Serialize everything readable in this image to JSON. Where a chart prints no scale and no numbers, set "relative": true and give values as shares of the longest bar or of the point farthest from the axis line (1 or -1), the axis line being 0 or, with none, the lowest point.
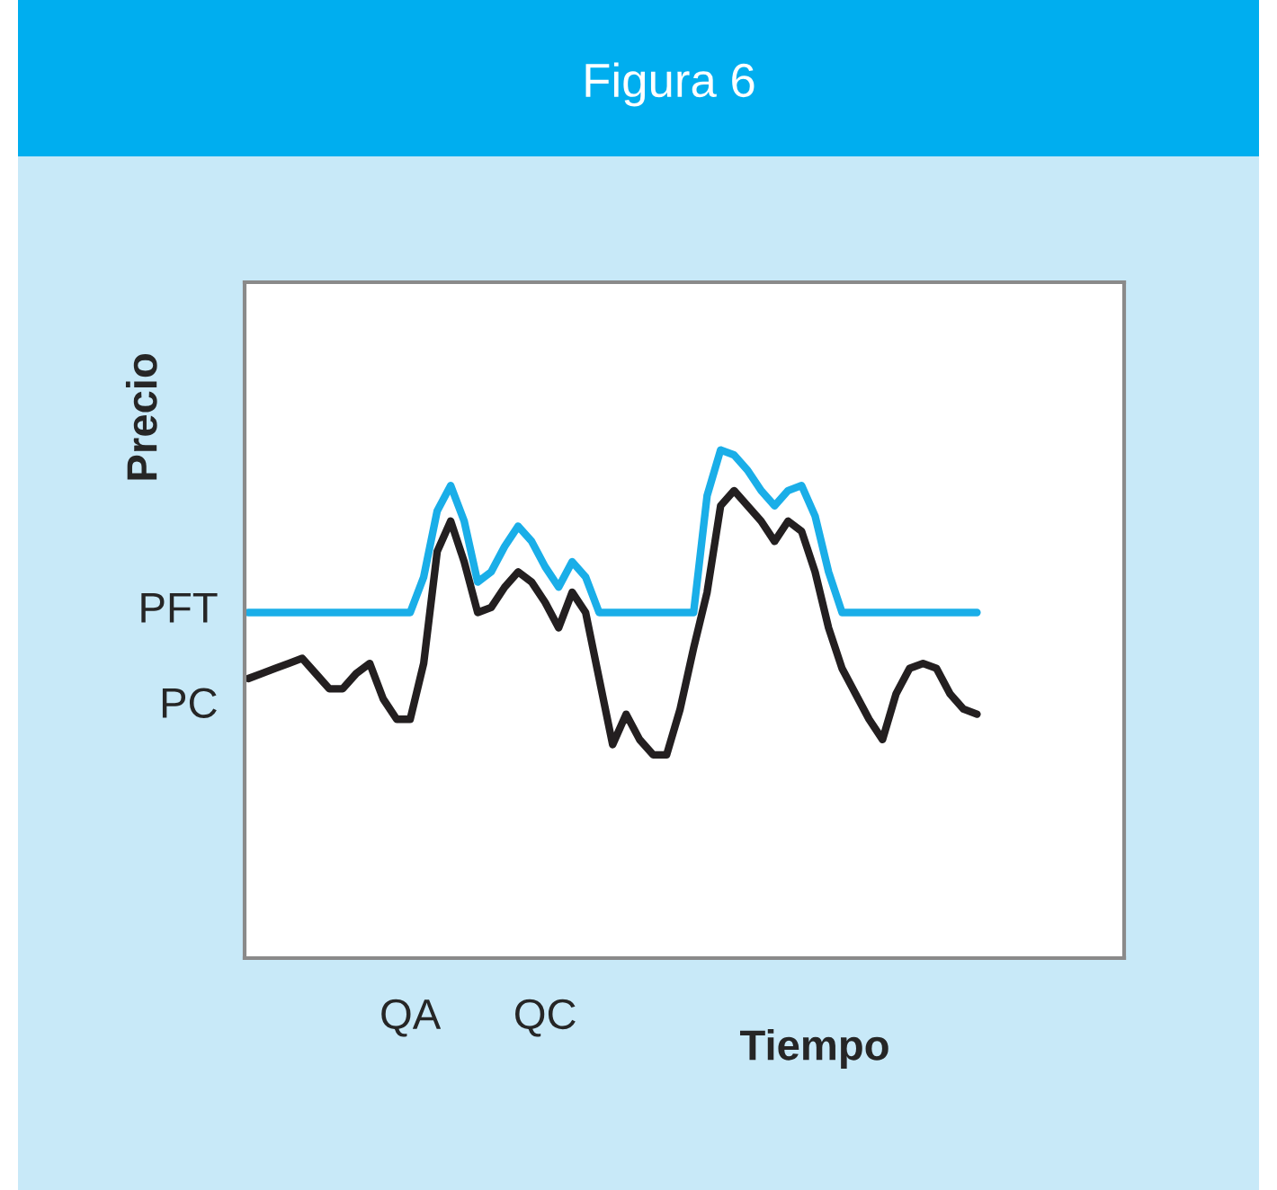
{
  "chart_data": {
    "type": "line",
    "title": "Figura 6",
    "xlabel": "Tiempo",
    "ylabel": "Precio",
    "relative": true,
    "legend": false,
    "grid": false,
    "line_style": "solid",
    "categories": [
      null,
      null,
      null,
      null,
      null,
      null,
      null,
      null,
      null,
      null,
      null,
      null,
      "QA",
      null,
      null,
      null,
      null,
      null,
      null,
      null,
      null,
      null,
      "QC",
      null,
      null,
      null,
      null,
      null,
      null,
      null,
      null,
      null,
      null,
      null,
      null,
      null,
      null,
      null,
      null,
      null,
      null,
      null,
      null,
      null,
      null,
      null,
      null,
      null,
      null,
      null,
      null,
      null,
      null,
      null,
      null,
      null,
      null,
      null,
      null,
      null,
      null,
      null,
      null,
      null,
      null
    ],
    "series": [
      {
        "color": "#1aaee8",
        "values": [
          0.68,
          0.68,
          0.68,
          0.68,
          0.68,
          0.68,
          0.68,
          0.68,
          0.68,
          0.68,
          0.68,
          0.68,
          0.68,
          0.75,
          0.88,
          0.93,
          0.86,
          0.74,
          0.76,
          0.81,
          0.85,
          0.82,
          0.77,
          0.73,
          0.78,
          0.75,
          0.68,
          0.68,
          0.68,
          0.68,
          0.68,
          0.68,
          0.68,
          0.68,
          0.91,
          1.0,
          0.99,
          0.96,
          0.92,
          0.89,
          0.92,
          0.93,
          0.87,
          0.76,
          0.68,
          0.68,
          0.68,
          0.68,
          0.68,
          0.68,
          0.68,
          0.68,
          0.68,
          0.68,
          0.68,
          null,
          null,
          null,
          null,
          null,
          null,
          null,
          null,
          null,
          null
        ]
      },
      {
        "color": "#231f20",
        "values": [
          0.55,
          0.56,
          0.57,
          0.58,
          0.59,
          0.56,
          0.53,
          0.53,
          0.56,
          0.58,
          0.51,
          0.47,
          0.47,
          0.58,
          0.8,
          0.86,
          0.78,
          0.68,
          0.69,
          0.73,
          0.76,
          0.74,
          0.7,
          0.65,
          0.72,
          0.68,
          0.55,
          0.42,
          0.48,
          0.43,
          0.4,
          0.4,
          0.49,
          0.61,
          0.72,
          0.89,
          0.92,
          0.89,
          0.86,
          0.82,
          0.86,
          0.84,
          0.76,
          0.65,
          0.57,
          0.52,
          0.47,
          0.43,
          0.52,
          0.57,
          0.58,
          0.57,
          0.52,
          0.49,
          0.48,
          null,
          null,
          null,
          null,
          null,
          null,
          null,
          null,
          null,
          null
        ]
      }
    ],
    "annotations": [
      "PFT",
      "PC"
    ]
  }
}
